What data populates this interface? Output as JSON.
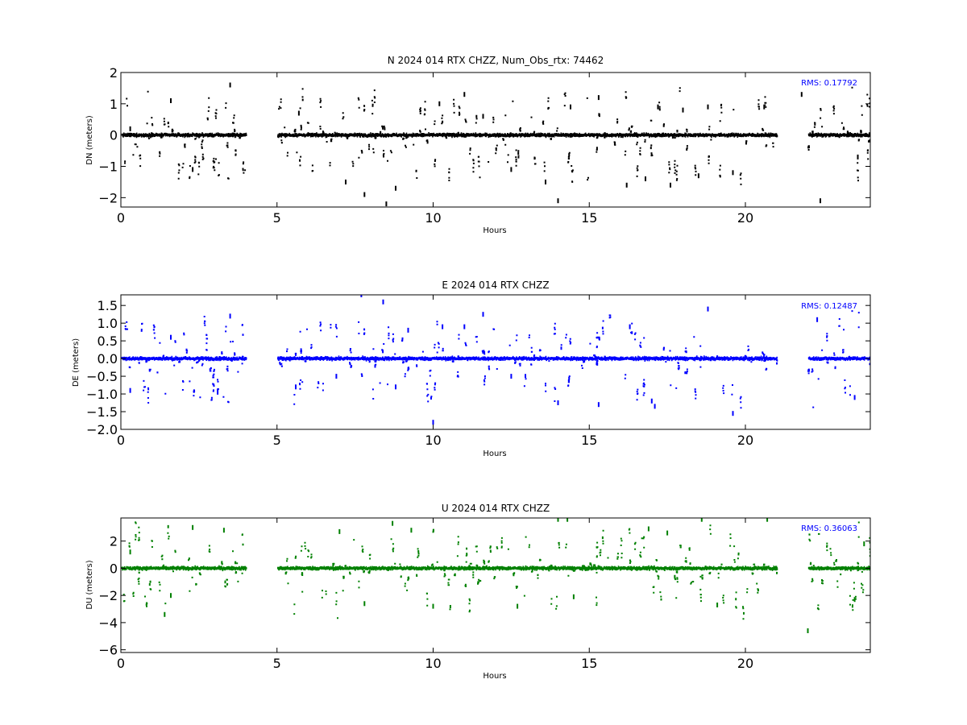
{
  "chart_data": [
    {
      "type": "scatter",
      "title": "N 2024 014 RTX  CHZZ, Num_Obs_rtx: 74462",
      "xlabel": "Hours",
      "ylabel": "DN (meters)",
      "xlim": [
        0,
        24
      ],
      "ylim": [
        -2.3,
        2.0
      ],
      "xticks": [
        0,
        5,
        10,
        15,
        20
      ],
      "xtick_labels": [
        "0",
        "5",
        "10",
        "15",
        "20"
      ],
      "yticks": [
        2,
        1,
        0,
        -1,
        -2
      ],
      "ytick_labels": [
        "2",
        "1",
        "0",
        "−1",
        "−2"
      ],
      "color": "#000000",
      "rms_label": "RMS:  0.17792",
      "rms_color": "#0000ff",
      "grid": false,
      "data_gaps_hours": [
        [
          4.0,
          5.0
        ],
        [
          21.0,
          22.0
        ]
      ],
      "series": [
        {
          "x": [
            0.3,
            1.6,
            2.3,
            3.5,
            5.7,
            7.2,
            7.8,
            8.5,
            8.8,
            10.2,
            11.0,
            11.6,
            12.5,
            13.6,
            14.0,
            14.4,
            15.3,
            16.2,
            16.8,
            17.2,
            17.6,
            18.0,
            18.5,
            18.8,
            19.6,
            20.6,
            21.8,
            22.4,
            23.6
          ],
          "y": [
            0.2,
            1.1,
            -1.1,
            1.6,
            0.7,
            -1.5,
            -1.9,
            -2.2,
            -1.7,
            1.0,
            1.3,
            0.6,
            -1.1,
            -1.5,
            -2.1,
            0.9,
            1.2,
            -1.6,
            -1.4,
            0.9,
            -1.6,
            0.8,
            -1.3,
            0.9,
            -1.2,
            0.9,
            1.3,
            -2.1,
            -0.7
          ]
        }
      ]
    },
    {
      "type": "scatter",
      "title": "E 2024 014 RTX  CHZZ",
      "xlabel": "Hours",
      "ylabel": "DE (meters)",
      "xlim": [
        0,
        24
      ],
      "ylim": [
        -2.0,
        1.8
      ],
      "xticks": [
        0,
        5,
        10,
        15,
        20
      ],
      "xtick_labels": [
        "0",
        "5",
        "10",
        "15",
        "20"
      ],
      "yticks": [
        1.5,
        1.0,
        0.5,
        0.0,
        -0.5,
        -1.0,
        -1.5,
        -2.0
      ],
      "ytick_labels": [
        "1.5",
        "1.0",
        "0.5",
        "0.0",
        "−0.5",
        "−1.0",
        "−1.5",
        "−2.0"
      ],
      "color": "#0000ff",
      "rms_label": "RMS:  0.12487",
      "rms_color": "#0000ff",
      "grid": false,
      "data_gaps_hours": [
        [
          4.0,
          5.0
        ],
        [
          21.0,
          22.0
        ]
      ],
      "series": [
        {
          "x": [
            0.3,
            1.6,
            3.1,
            3.5,
            5.6,
            6.9,
            7.7,
            8.4,
            8.8,
            9.2,
            10.0,
            10.3,
            11.0,
            11.6,
            12.5,
            14.0,
            15.3,
            16.3,
            17.0,
            17.1,
            18.8,
            19.6,
            22.3,
            23.5
          ],
          "y": [
            -0.9,
            0.6,
            -0.95,
            1.2,
            -0.8,
            -0.5,
            1.8,
            1.6,
            -0.8,
            0.8,
            -1.8,
            0.9,
            0.9,
            1.25,
            -0.5,
            -1.25,
            -1.3,
            0.9,
            -1.2,
            -1.35,
            1.4,
            -1.55,
            1.1,
            -1.1
          ]
        }
      ]
    },
    {
      "type": "scatter",
      "title": "U 2024 014 RTX  CHZZ",
      "xlabel": "Hours",
      "ylabel": "DU (meters)",
      "xlim": [
        0,
        24
      ],
      "ylim": [
        -6.2,
        3.7
      ],
      "xticks": [
        0,
        5,
        10,
        15,
        20
      ],
      "xtick_labels": [
        "0",
        "5",
        "10",
        "15",
        "20"
      ],
      "yticks": [
        2,
        0,
        -2,
        -4,
        -6
      ],
      "ytick_labels": [
        "2",
        "0",
        "−2",
        "−4",
        "−6"
      ],
      "color": "#008000",
      "rms_label": "RMS:  0.36063",
      "rms_color": "#0000ff",
      "grid": false,
      "data_gaps_hours": [
        [
          4.0,
          5.0
        ],
        [
          21.0,
          22.0
        ]
      ],
      "series": [
        {
          "x": [
            0.3,
            1.4,
            1.6,
            2.3,
            3.3,
            7.0,
            7.8,
            8.7,
            9.3,
            10.0,
            12.7,
            14.0,
            14.3,
            14.5,
            16.9,
            17.5,
            18.6,
            19.1,
            20.7,
            22.0,
            23.5,
            23.8
          ],
          "y": [
            1.2,
            -3.4,
            -2.0,
            3.0,
            2.8,
            2.7,
            -2.6,
            3.3,
            2.8,
            -2.8,
            -2.8,
            3.6,
            3.6,
            -2.1,
            2.9,
            2.6,
            3.6,
            -2.7,
            3.6,
            -4.6,
            -2.3,
            1.8
          ]
        }
      ]
    }
  ]
}
